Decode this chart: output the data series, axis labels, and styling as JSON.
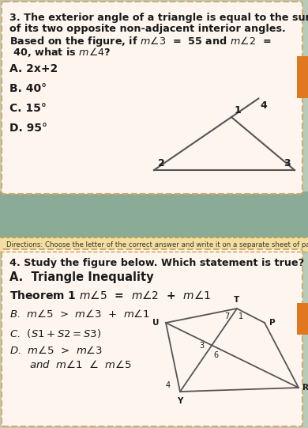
{
  "bg_color": "#b8cbb8",
  "top_box_bg": "#fef5ee",
  "box_border": "#d4aa70",
  "middle_band_bg": "#8aab96",
  "directions_bg": "#f5dfa0",
  "directions_border": "#c8a040",
  "bottom_box_bg": "#fef5ee",
  "orange_tab": "#e07820",
  "text_color": "#1a1a1a",
  "line_color": "#555555",
  "q3_line1": "3. The exterior angle of a triangle is equal to the sum",
  "q3_line2": "of its two opposite non-adjacent interior angles.",
  "q3_line3": "Based on the figure, if $m\\angle3$  =  55 and $m\\angle2$  =",
  "q3_line4": " 40, what is $m\\angle4$?",
  "q3_opts": [
    "A. 2x+2",
    "B. 40°",
    "C. 15°",
    "D. 95°"
  ],
  "directions_text": "Directions: Choose the letter of the correct answer and write it on a separate sheet of paper.",
  "q4_line1": "4. Study the figure below. Which statement is true?",
  "q4_A": "A.  Triangle Inequality",
  "q4_theorem": "Theorem 1 $m\\angle5$  =  $m\\angle2$  +  $m\\angle1$",
  "q4_B": "B.  $m\\angle5$  >  $m\\angle3$  +  $m\\angle1$",
  "q4_C": "C.  $(S1 + S2 = S3)$",
  "q4_D1": "D.  $m\\angle5$  >  $m\\angle3$",
  "q4_D2": "      $and$  $m\\angle1$  $\\angle$  $m\\angle5$"
}
